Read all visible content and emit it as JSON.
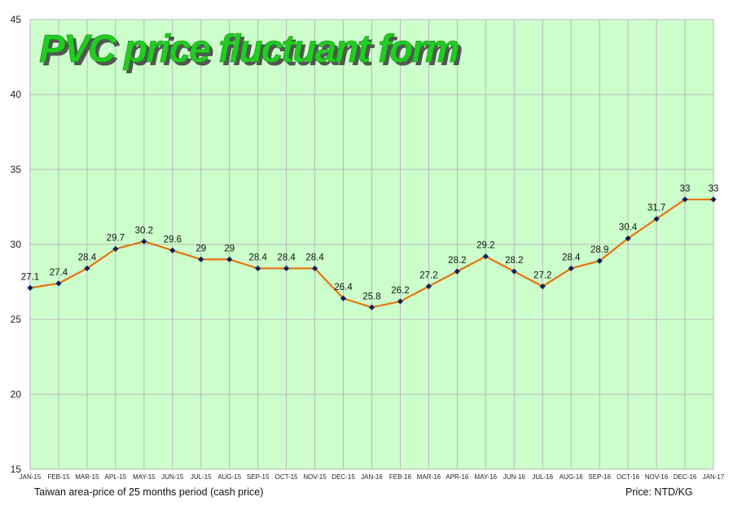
{
  "chart_data": {
    "type": "line",
    "title": "PVC price fluctuant form",
    "categories": [
      "JAN-15",
      "FEB-15",
      "MAR-15",
      "APL-15",
      "MAY-15",
      "JUN-15",
      "JUL-15",
      "AUG-15",
      "SEP-15",
      "OCT-15",
      "NOV-15",
      "DEC-15",
      "JAN-16",
      "FEB-16",
      "MAR-16",
      "APR-16",
      "MAY-16",
      "JUN-16",
      "JUL-16",
      "AUG-16",
      "SEP-16",
      "OCT-16",
      "NOV-16",
      "DEC-16",
      "JAN-17"
    ],
    "series": [
      {
        "values": [
          27.1,
          27.4,
          28.4,
          29.7,
          30.2,
          29.6,
          29,
          29,
          28.4,
          28.4,
          28.4,
          26.4,
          25.8,
          26.2,
          27.2,
          28.2,
          29.2,
          28.2,
          27.2,
          28.4,
          28.9,
          30.4,
          31.7,
          33,
          33
        ]
      }
    ],
    "data_labels": [
      "27.1",
      "27.4",
      "28.4",
      "29.7",
      "30.2",
      "29.6",
      "29",
      "29",
      "28.4",
      "28.4",
      "28.4",
      "26.4",
      "25.8",
      "26.2",
      "27.2",
      "28.2",
      "29.2",
      "28.2",
      "27.2",
      "28.4",
      "28.9",
      "30.4",
      "31.7",
      "33",
      "33"
    ],
    "yticks": [
      15,
      20,
      25,
      30,
      35,
      40,
      45
    ],
    "ylim": [
      15,
      45
    ],
    "grid": true,
    "xlabel": "Taiwan area-price of 25 months period (cash price)",
    "unit_label": "Price: NTD/KG",
    "colors": {
      "plot_background": "#ccffcc",
      "grid": "#b8b8b8",
      "line": "#e6730f",
      "marker": "#102060",
      "title_fill": "#22cc22",
      "title_shadow": "#555555",
      "axis": "#9a9a9a"
    }
  }
}
